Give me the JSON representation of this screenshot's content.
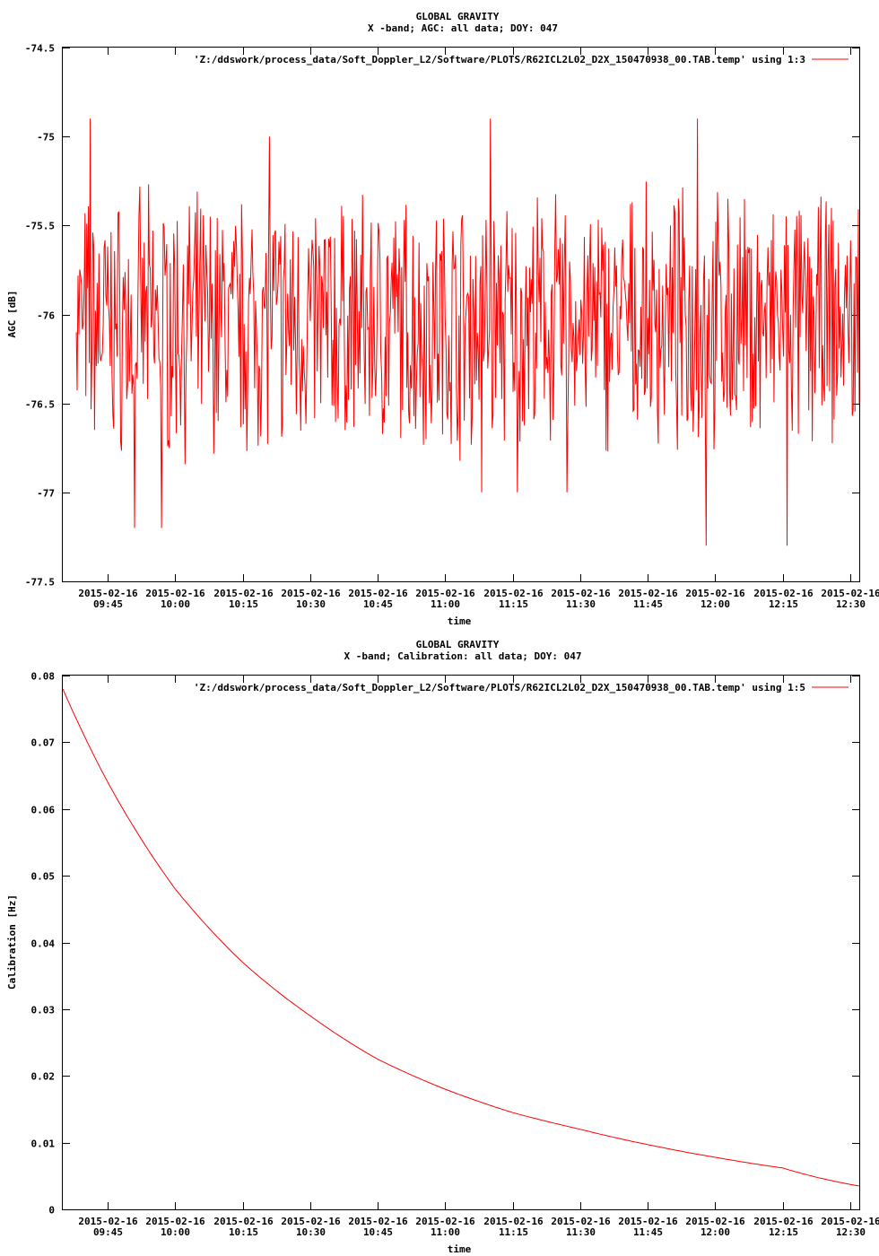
{
  "chart_data": [
    {
      "type": "line",
      "title": "GLOBAL GRAVITY",
      "subtitle": "X -band; AGC: all data; DOY: 047",
      "xlabel": "time",
      "ylabel": "AGC [dB]",
      "ylim": [
        -77.5,
        -74.5
      ],
      "xlim": [
        "2015-02-16 09:35",
        "2015-02-16 12:32"
      ],
      "yticks": [
        -74.5,
        -75,
        -75.5,
        -76,
        -76.5,
        -77,
        -77.5
      ],
      "ytick_labels": [
        "-74.5",
        "-75",
        "-75.5",
        "-76",
        "-76.5",
        "-77",
        "-77.5"
      ],
      "xtick_labels": [
        [
          "2015-02-16",
          "09:45"
        ],
        [
          "2015-02-16",
          "10:00"
        ],
        [
          "2015-02-16",
          "10:15"
        ],
        [
          "2015-02-16",
          "10:30"
        ],
        [
          "2015-02-16",
          "10:45"
        ],
        [
          "2015-02-16",
          "11:00"
        ],
        [
          "2015-02-16",
          "11:15"
        ],
        [
          "2015-02-16",
          "11:30"
        ],
        [
          "2015-02-16",
          "11:45"
        ],
        [
          "2015-02-16",
          "12:00"
        ],
        [
          "2015-02-16",
          "12:15"
        ],
        [
          "2015-02-16",
          "12:30"
        ]
      ],
      "legend_position": "top-right",
      "series": [
        {
          "name": "'Z:/ddswork/process_data/Soft_Doppler_L2/Software/PLOTS/R62ICL2L02_D2X_150470938_00.TAB.temp' using 1:3",
          "color": "#ff0000",
          "x_start": "2015-02-16 09:38",
          "x_end": "2015-02-16 12:32",
          "noisy_samples": true,
          "min": -77.3,
          "max": -74.9,
          "key_values": [
            {
              "x": "2015-02-16 09:38",
              "y": -76.1
            },
            {
              "x": "2015-02-16 09:41",
              "y": -74.9
            },
            {
              "x": "2015-02-16 09:51",
              "y": -77.2
            },
            {
              "x": "2015-02-16 09:57",
              "y": -77.2
            },
            {
              "x": "2015-02-16 10:21",
              "y": -75.0
            },
            {
              "x": "2015-02-16 11:08",
              "y": -77.0
            },
            {
              "x": "2015-02-16 11:10",
              "y": -74.9
            },
            {
              "x": "2015-02-16 11:16",
              "y": -77.0
            },
            {
              "x": "2015-02-16 11:27",
              "y": -77.0
            },
            {
              "x": "2015-02-16 11:56",
              "y": -74.9
            },
            {
              "x": "2015-02-16 11:58",
              "y": -77.3
            },
            {
              "x": "2015-02-16 12:16",
              "y": -77.3
            },
            {
              "x": "2015-02-16 12:32",
              "y": -76.5
            }
          ]
        }
      ]
    },
    {
      "type": "line",
      "title": "GLOBAL GRAVITY",
      "subtitle": "X -band; Calibration: all data; DOY: 047",
      "xlabel": "time",
      "ylabel": "Calibration [Hz]",
      "ylim": [
        0,
        0.08
      ],
      "xlim": [
        "2015-02-16 09:35",
        "2015-02-16 12:32"
      ],
      "yticks": [
        0,
        0.01,
        0.02,
        0.03,
        0.04,
        0.05,
        0.06,
        0.07,
        0.08
      ],
      "ytick_labels": [
        "0",
        "0.01",
        "0.02",
        "0.03",
        "0.04",
        "0.05",
        "0.06",
        "0.07",
        "0.08"
      ],
      "xtick_labels": [
        [
          "2015-02-16",
          "09:45"
        ],
        [
          "2015-02-16",
          "10:00"
        ],
        [
          "2015-02-16",
          "10:15"
        ],
        [
          "2015-02-16",
          "10:30"
        ],
        [
          "2015-02-16",
          "10:45"
        ],
        [
          "2015-02-16",
          "11:00"
        ],
        [
          "2015-02-16",
          "11:15"
        ],
        [
          "2015-02-16",
          "11:30"
        ],
        [
          "2015-02-16",
          "11:45"
        ],
        [
          "2015-02-16",
          "12:00"
        ],
        [
          "2015-02-16",
          "12:15"
        ],
        [
          "2015-02-16",
          "12:30"
        ]
      ],
      "legend_position": "top-right",
      "series": [
        {
          "name": "'Z:/ddswork/process_data/Soft_Doppler_L2/Software/PLOTS/R62ICL2L02_D2X_150470938_00.TAB.temp' using 1:5",
          "color": "#ff0000",
          "points": [
            {
              "x": "2015-02-16 09:35",
              "y": 0.078
            },
            {
              "x": "2015-02-16 09:45",
              "y": 0.064
            },
            {
              "x": "2015-02-16 10:00",
              "y": 0.048
            },
            {
              "x": "2015-02-16 10:15",
              "y": 0.037
            },
            {
              "x": "2015-02-16 10:30",
              "y": 0.029
            },
            {
              "x": "2015-02-16 10:45",
              "y": 0.0225
            },
            {
              "x": "2015-02-16 11:00",
              "y": 0.018
            },
            {
              "x": "2015-02-16 11:15",
              "y": 0.0145
            },
            {
              "x": "2015-02-16 11:30",
              "y": 0.012
            },
            {
              "x": "2015-02-16 11:45",
              "y": 0.0097
            },
            {
              "x": "2015-02-16 12:00",
              "y": 0.0078
            },
            {
              "x": "2015-02-16 12:15",
              "y": 0.0062
            },
            {
              "x": "2015-02-16 12:32",
              "y": 0.0035
            }
          ]
        }
      ]
    }
  ]
}
